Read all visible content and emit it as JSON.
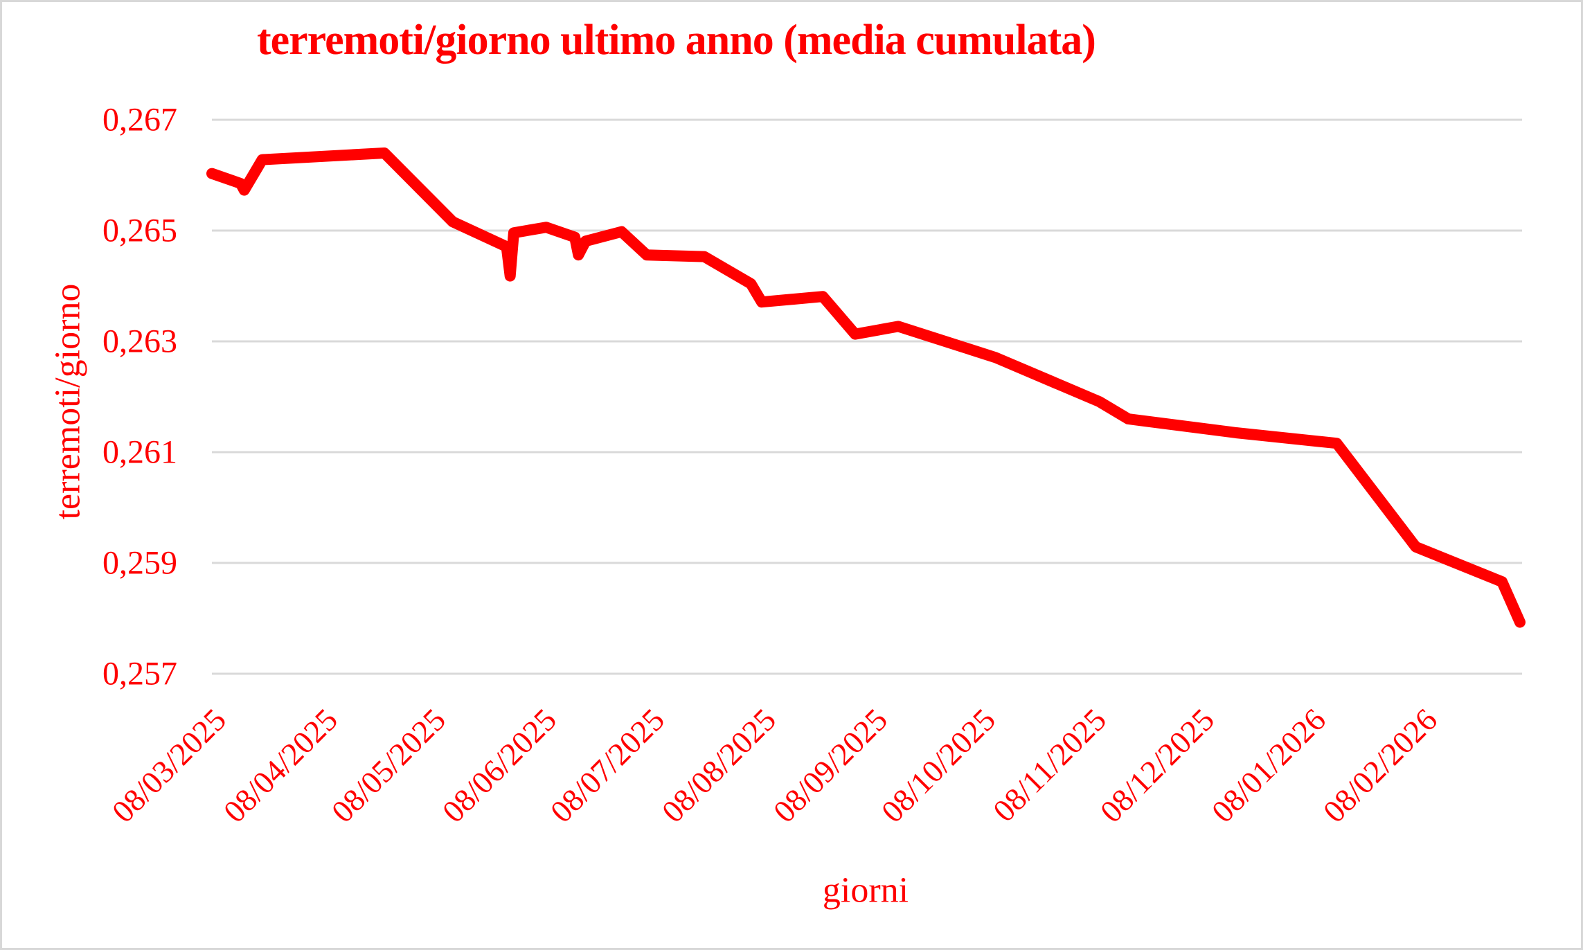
{
  "title": "terremoti/giorno ultimo anno (media cumulata)",
  "colors": {
    "accent": "#ff0000",
    "text": "#ff0000",
    "gridline": "#d9d9d9",
    "frame_border": "#d8d8d8",
    "background": "#ffffff"
  },
  "chart_data": {
    "type": "line",
    "title": "terremoti/giorno ultimo anno (media cumulata)",
    "xlabel": "giorni",
    "ylabel": "terremoti/giorno",
    "x_unit": "days since 08/03/2025 (dd/mm/yyyy)",
    "xlim_days": [
      0,
      364
    ],
    "ylim": [
      0.257,
      0.267
    ],
    "y_tick_step": 0.002,
    "grid": "horizontal-only",
    "legend": "none",
    "decimal_separator": ",",
    "y_ticks": [
      {
        "value": 0.267,
        "label": "0,267"
      },
      {
        "value": 0.265,
        "label": "0,265"
      },
      {
        "value": 0.263,
        "label": "0,263"
      },
      {
        "value": 0.261,
        "label": "0,261"
      },
      {
        "value": 0.259,
        "label": "0,259"
      },
      {
        "value": 0.257,
        "label": "0,257"
      }
    ],
    "x_ticks": [
      {
        "day": 0,
        "label": "08/03/2025"
      },
      {
        "day": 31,
        "label": "08/04/2025"
      },
      {
        "day": 61,
        "label": "08/05/2025"
      },
      {
        "day": 92,
        "label": "08/06/2025"
      },
      {
        "day": 122,
        "label": "08/07/2025"
      },
      {
        "day": 153,
        "label": "08/08/2025"
      },
      {
        "day": 184,
        "label": "08/09/2025"
      },
      {
        "day": 214,
        "label": "08/10/2025"
      },
      {
        "day": 245,
        "label": "08/11/2025"
      },
      {
        "day": 275,
        "label": "08/12/2025"
      },
      {
        "day": 306,
        "label": "08/01/2026"
      },
      {
        "day": 337,
        "label": "08/02/2026"
      }
    ],
    "series": [
      {
        "name": "terremoti/giorno media cumulata",
        "color": "#ff0000",
        "stroke_width": 16,
        "points": [
          {
            "day": 0,
            "value": 0.26603
          },
          {
            "day": 8,
            "value": 0.26585
          },
          {
            "day": 9,
            "value": 0.26573
          },
          {
            "day": 14,
            "value": 0.26628
          },
          {
            "day": 48,
            "value": 0.2664
          },
          {
            "day": 67,
            "value": 0.26516
          },
          {
            "day": 82,
            "value": 0.26471
          },
          {
            "day": 83,
            "value": 0.26418
          },
          {
            "day": 84,
            "value": 0.26496
          },
          {
            "day": 93,
            "value": 0.26506
          },
          {
            "day": 101,
            "value": 0.26488
          },
          {
            "day": 102,
            "value": 0.26456
          },
          {
            "day": 104,
            "value": 0.26481
          },
          {
            "day": 114,
            "value": 0.26498
          },
          {
            "day": 121,
            "value": 0.26456
          },
          {
            "day": 137,
            "value": 0.26453
          },
          {
            "day": 150,
            "value": 0.26404
          },
          {
            "day": 153,
            "value": 0.26371
          },
          {
            "day": 170,
            "value": 0.26381
          },
          {
            "day": 179,
            "value": 0.26313
          },
          {
            "day": 191,
            "value": 0.26327
          },
          {
            "day": 218,
            "value": 0.26271
          },
          {
            "day": 247,
            "value": 0.26191
          },
          {
            "day": 255,
            "value": 0.2616
          },
          {
            "day": 285,
            "value": 0.26135
          },
          {
            "day": 313,
            "value": 0.26116
          },
          {
            "day": 335,
            "value": 0.25929
          },
          {
            "day": 359,
            "value": 0.25866
          },
          {
            "day": 364,
            "value": 0.25793
          }
        ]
      }
    ]
  }
}
